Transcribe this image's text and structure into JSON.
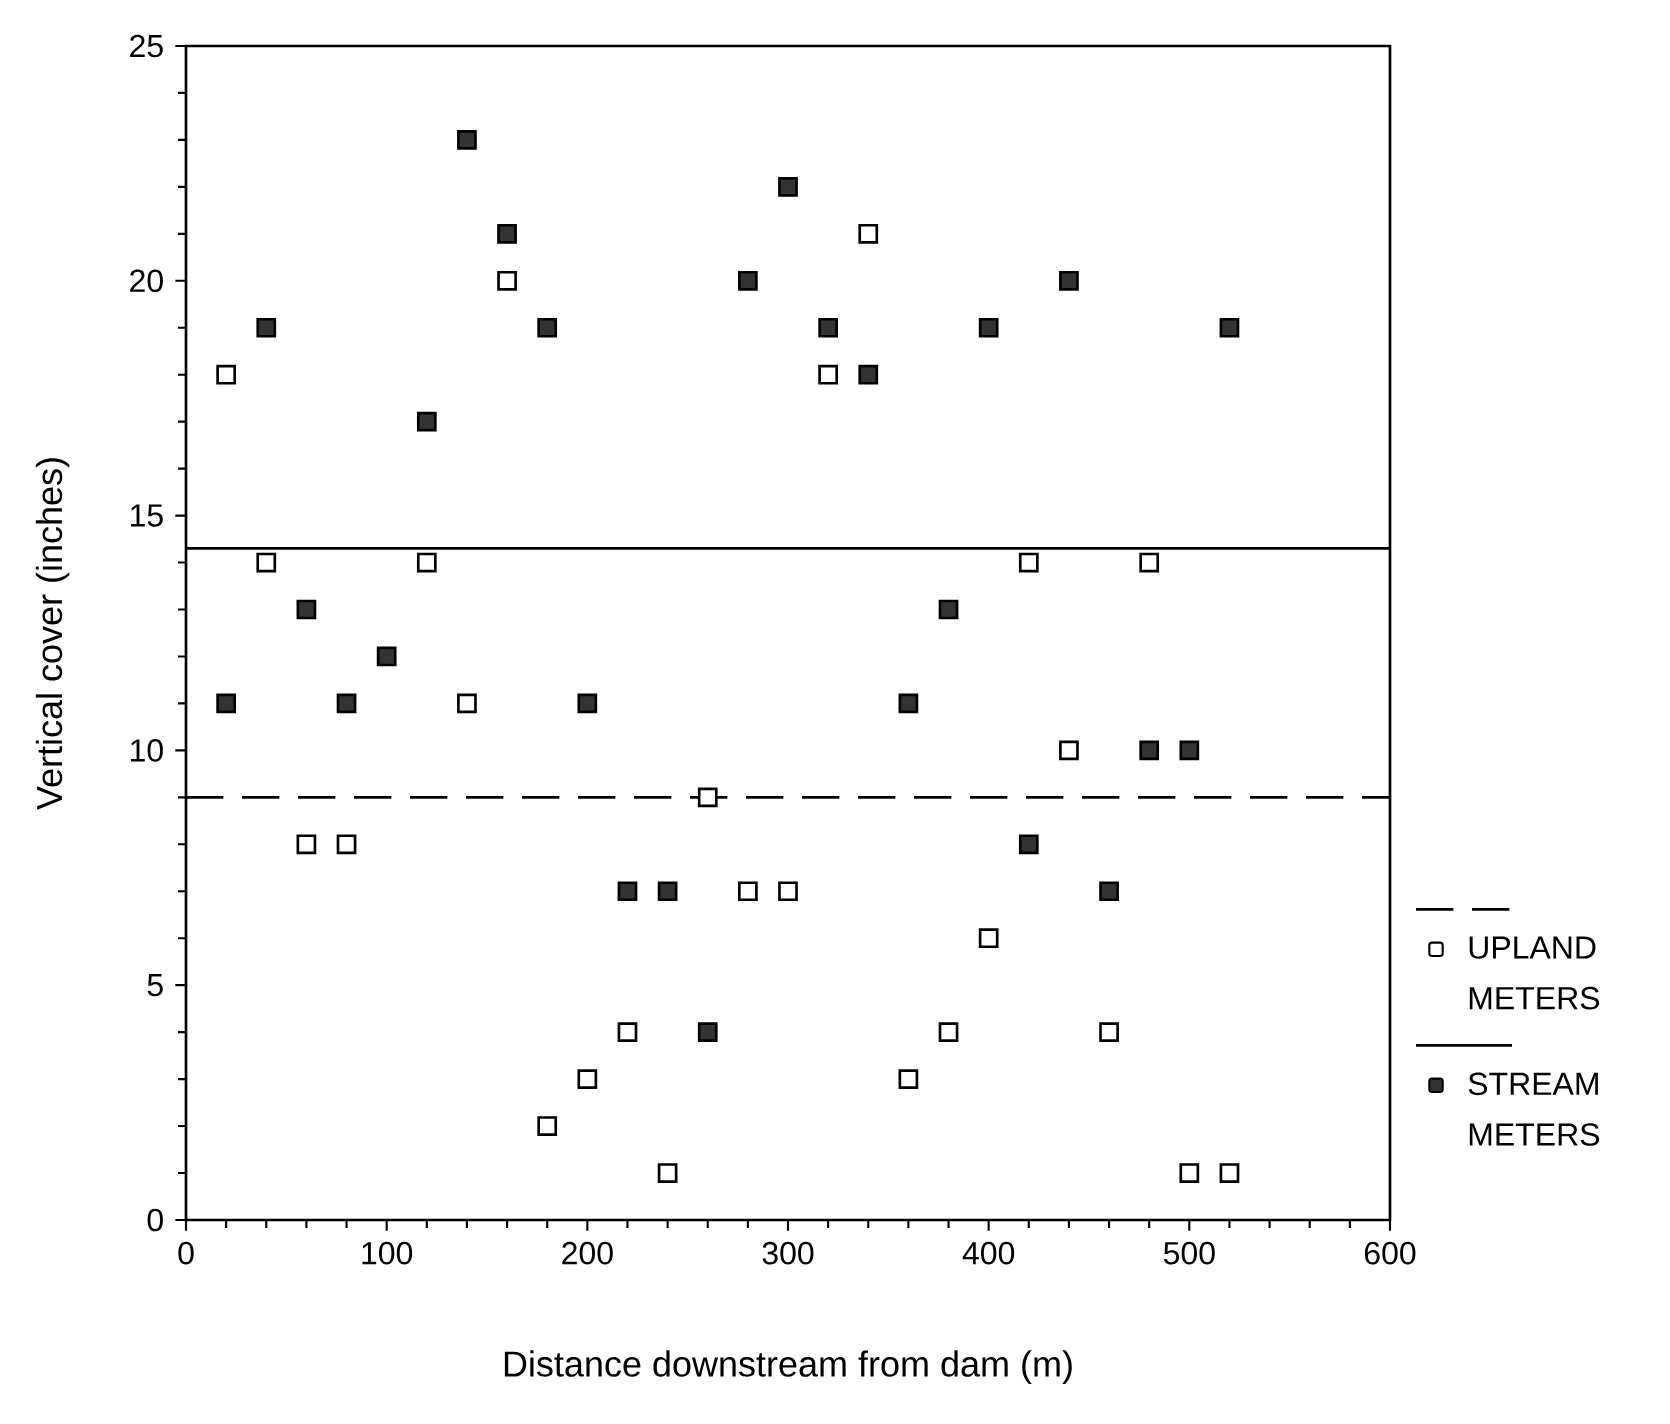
{
  "chart_data": {
    "type": "scatter",
    "xlabel": "Distance downstream from dam (m)",
    "ylabel": "Vertical cover (inches)",
    "xlim": [
      0,
      600
    ],
    "xticks": [
      0,
      100,
      200,
      300,
      400,
      500,
      600
    ],
    "ylim": [
      0,
      25
    ],
    "yticks": [
      0,
      5,
      10,
      15,
      20,
      25
    ],
    "marker": "square",
    "legend": "right",
    "grid": false,
    "series": [
      {
        "name": "UPLAND METERS",
        "color": "#ffffff",
        "x": [
          20,
          40,
          60,
          80,
          120,
          140,
          160,
          180,
          200,
          220,
          240,
          260,
          280,
          300,
          320,
          340,
          360,
          380,
          400,
          420,
          440,
          460,
          480,
          500,
          520
        ],
        "values": [
          18,
          14,
          8,
          8,
          14,
          11,
          20,
          2,
          3,
          4,
          1,
          9,
          7,
          7,
          18,
          21,
          3,
          4,
          6,
          14,
          10,
          4,
          14,
          1,
          1
        ]
      },
      {
        "name": "STREAM METERS",
        "color": "#333333",
        "x": [
          20,
          40,
          60,
          80,
          100,
          120,
          140,
          160,
          180,
          200,
          220,
          240,
          260,
          280,
          300,
          320,
          340,
          360,
          380,
          400,
          420,
          440,
          460,
          480,
          500,
          520
        ],
        "values": [
          11,
          19,
          13,
          11,
          12,
          17,
          23,
          21,
          19,
          11,
          7,
          7,
          4,
          20,
          22,
          19,
          18,
          11,
          13,
          19,
          8,
          20,
          7,
          10,
          10,
          19
        ]
      }
    ],
    "ref_lines": [
      {
        "axis": "y",
        "value": 9.0,
        "line_style": "dashed"
      },
      {
        "axis": "y",
        "value": 14.3,
        "line_style": "solid"
      }
    ]
  }
}
